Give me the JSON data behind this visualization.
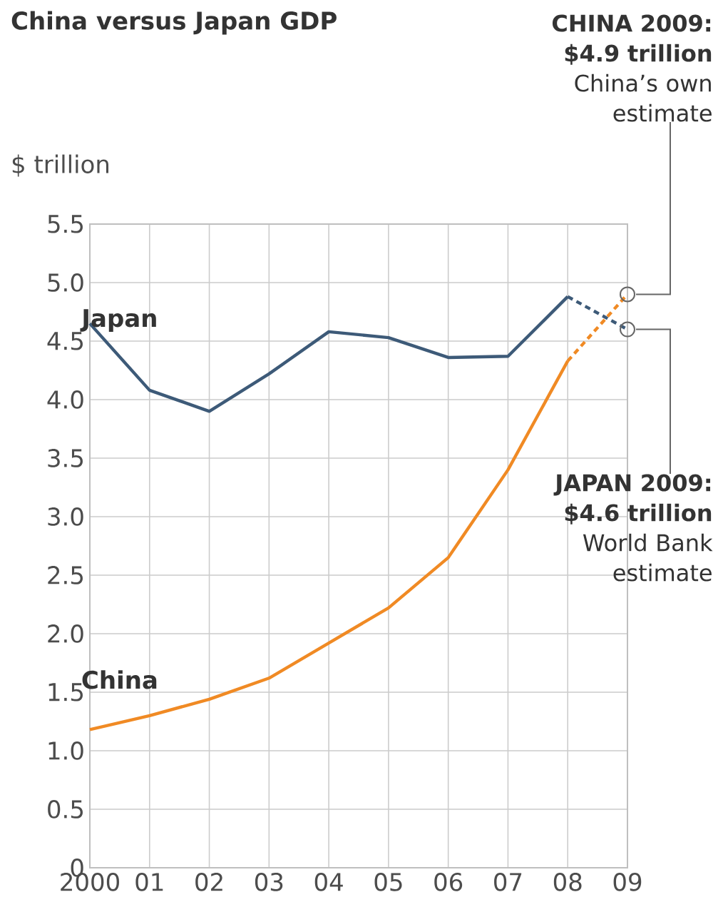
{
  "chart_data": {
    "type": "line",
    "title": "China versus Japan GDP",
    "ylabel": "$ trillion",
    "categories": [
      "2000",
      "01",
      "02",
      "03",
      "04",
      "05",
      "06",
      "07",
      "08",
      "09"
    ],
    "series": [
      {
        "name": "Japan",
        "color": "#3d5a78",
        "values": [
          4.65,
          4.08,
          3.9,
          4.22,
          4.58,
          4.53,
          4.36,
          4.37,
          4.88,
          null
        ]
      },
      {
        "name": "China",
        "color": "#f08a24",
        "values": [
          1.18,
          1.3,
          1.44,
          1.62,
          1.92,
          2.22,
          2.65,
          3.4,
          4.33,
          null
        ]
      },
      {
        "color": "#3d5a78",
        "line_style": "dashed",
        "marker": "circle",
        "values": [
          null,
          null,
          null,
          null,
          null,
          null,
          null,
          null,
          4.88,
          4.6
        ]
      },
      {
        "color": "#f08a24",
        "line_style": "dashed",
        "marker": "circle",
        "values": [
          null,
          null,
          null,
          null,
          null,
          null,
          null,
          null,
          4.33,
          4.9
        ]
      }
    ],
    "ylim": [
      0,
      5.5
    ],
    "yticks": [
      0,
      0.5,
      {
        "value": 1,
        "label": "1.0"
      },
      1.5,
      {
        "value": 2,
        "label": "2.0"
      },
      2.5,
      {
        "value": 3,
        "label": "3.0"
      },
      3.5,
      {
        "value": 4,
        "label": "4.0"
      },
      4.5,
      {
        "value": 5,
        "label": "5.0"
      },
      5.5
    ],
    "grid": true,
    "annotations": [
      {
        "text": "**CHINA 2009: $4.9 trillion** China’s own estimate",
        "x": "09",
        "y": 4.9
      },
      {
        "text": "**JAPAN 2009: $4.6 trillion** World Bank estimate",
        "x": "09",
        "y": 4.6
      }
    ]
  }
}
